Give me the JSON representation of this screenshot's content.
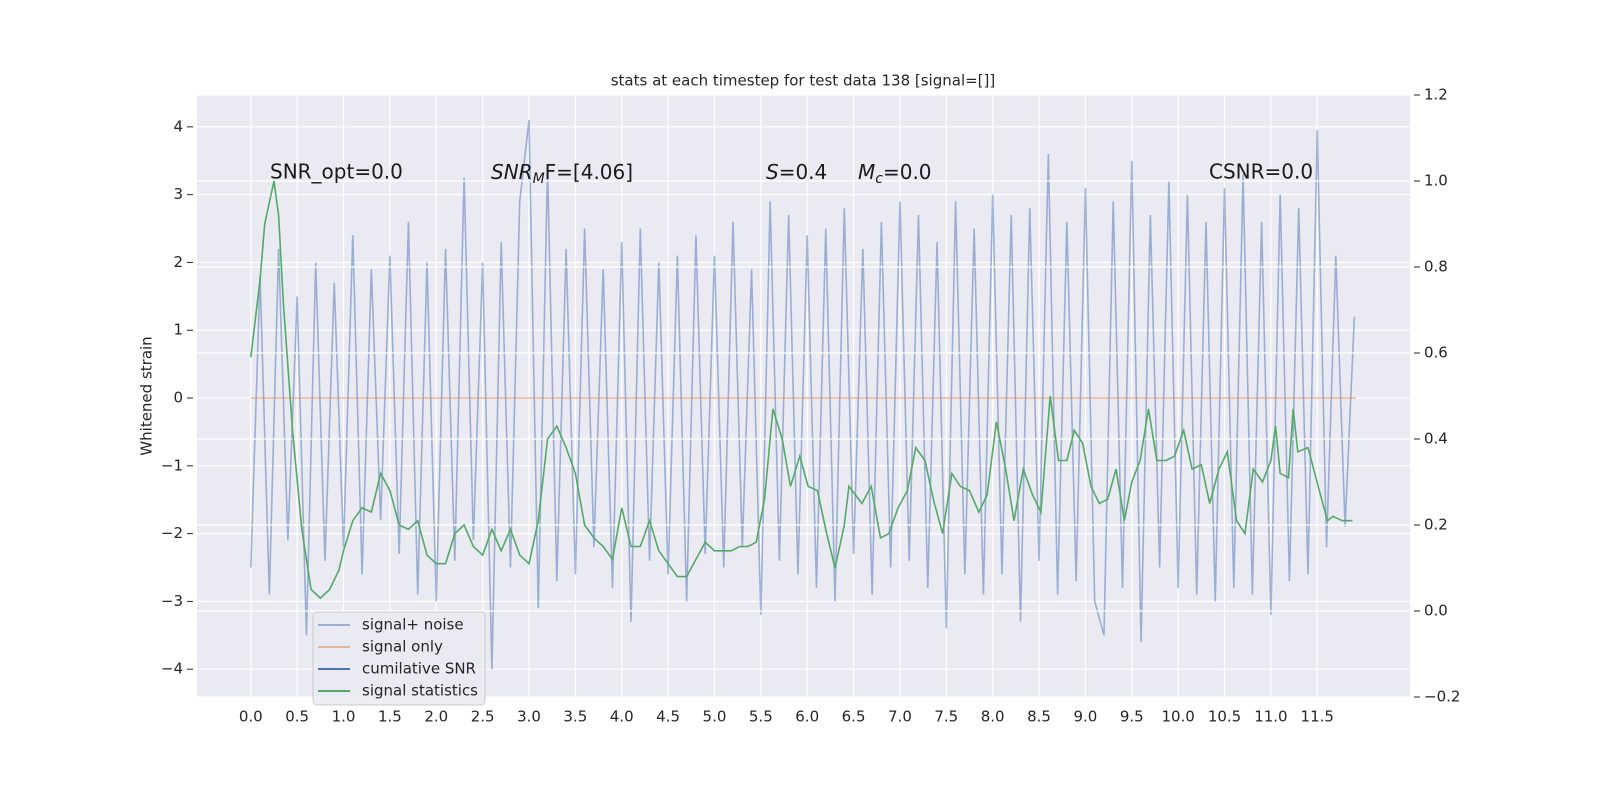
{
  "chart_data": {
    "type": "line",
    "title": "stats at each timestep for test data 138 [signal=[]]",
    "ylabel": "Whitened strain",
    "xlim": [
      -0.58,
      12.5
    ],
    "ylim": [
      -4.41,
      4.47
    ],
    "y2lim": [
      -0.2,
      1.2
    ],
    "xticks": [
      {
        "value": 0,
        "label": "0.0"
      },
      0.5,
      {
        "value": 1,
        "label": "1.0"
      },
      1.5,
      {
        "value": 2,
        "label": "2.0"
      },
      2.5,
      {
        "value": 3,
        "label": "3.0"
      },
      3.5,
      {
        "value": 4,
        "label": "4.0"
      },
      4.5,
      {
        "value": 5,
        "label": "5.0"
      },
      5.5,
      {
        "value": 6,
        "label": "6.0"
      },
      6.5,
      {
        "value": 7,
        "label": "7.0"
      },
      7.5,
      {
        "value": 8,
        "label": "8.0"
      },
      8.5,
      {
        "value": 9,
        "label": "9.0"
      },
      9.5,
      {
        "value": 10,
        "label": "10.0"
      },
      10.5,
      {
        "value": 11,
        "label": "11.0"
      },
      11.5
    ],
    "yticks": [
      {
        "value": -4,
        "label": "−4"
      },
      {
        "value": -3,
        "label": "−3"
      },
      {
        "value": -2,
        "label": "−2"
      },
      {
        "value": -1,
        "label": "−1"
      },
      0,
      1,
      2,
      3,
      4
    ],
    "y2ticks": [
      {
        "value": -0.2,
        "label": "−0.2"
      },
      {
        "value": 0,
        "label": "0.0"
      },
      0.2,
      0.4,
      0.6,
      0.8,
      {
        "value": 1,
        "label": "1.0"
      },
      1.2
    ],
    "grid": true,
    "legend": "lower left",
    "annotations": [
      {
        "text": "SNR_opt=0.0"
      },
      {
        "base": "SNR",
        "sub": "M",
        "rest": "F=[4.06]"
      },
      {
        "base": "S",
        "rest": "=0.4"
      },
      {
        "base": "M",
        "sub": "c",
        "rest": "=0.0"
      },
      {
        "text": "CSNR=0.0"
      }
    ],
    "series": [
      {
        "name": "signal+ noise",
        "color": "#4c72b0",
        "alpha": 0.5,
        "x": [
          0,
          0.1,
          0.2,
          0.3,
          0.4,
          0.5,
          0.6,
          0.7,
          0.8,
          0.9,
          1,
          1.1,
          1.2,
          1.3,
          1.4,
          1.5,
          1.6,
          1.7,
          1.8,
          1.9,
          2,
          2.1,
          2.2,
          2.3,
          2.4,
          2.5,
          2.6,
          2.7,
          2.8,
          2.9,
          3,
          3.1,
          3.2,
          3.3,
          3.4,
          3.5,
          3.6,
          3.7,
          3.8,
          3.9,
          4,
          4.1,
          4.2,
          4.3,
          4.4,
          4.5,
          4.6,
          4.7,
          4.8,
          4.9,
          5,
          5.1,
          5.2,
          5.3,
          5.4,
          5.5,
          5.6,
          5.7,
          5.8,
          5.9,
          6,
          6.1,
          6.2,
          6.3,
          6.4,
          6.5,
          6.6,
          6.7,
          6.8,
          6.9,
          7,
          7.1,
          7.2,
          7.3,
          7.4,
          7.5,
          7.6,
          7.7,
          7.8,
          7.9,
          8,
          8.1,
          8.2,
          8.3,
          8.4,
          8.5,
          8.6,
          8.7,
          8.8,
          8.9,
          9,
          9.1,
          9.2,
          9.3,
          9.4,
          9.5,
          9.6,
          9.7,
          9.8,
          9.9,
          10,
          10.1,
          10.2,
          10.3,
          10.4,
          10.5,
          10.6,
          10.7,
          10.8,
          10.9,
          11,
          11.1,
          11.2,
          11.3,
          11.4,
          11.5,
          11.6,
          11.7,
          11.8,
          11.9
        ],
        "values": [
          -2.5,
          1.8,
          -2.9,
          2.2,
          -2.1,
          1.5,
          -3.5,
          2.0,
          -2.4,
          1.7,
          -2.2,
          2.4,
          -2.6,
          1.9,
          -1.8,
          2.1,
          -2.3,
          2.6,
          -2.9,
          2.0,
          -3.0,
          2.2,
          -2.4,
          3.25,
          -2.1,
          2.0,
          -4.0,
          2.3,
          -2.5,
          2.9,
          4.1,
          -3.1,
          3.4,
          -2.7,
          2.2,
          -2.6,
          2.5,
          -2.2,
          1.9,
          -2.8,
          2.3,
          -3.3,
          2.5,
          -2.4,
          2.0,
          -2.6,
          2.1,
          -3.0,
          2.4,
          -2.3,
          2.1,
          -2.5,
          2.6,
          -2.2,
          1.9,
          -3.2,
          2.9,
          -2.4,
          2.7,
          -2.6,
          2.4,
          -2.8,
          2.5,
          -3.0,
          2.8,
          -2.3,
          2.2,
          -2.9,
          2.6,
          -2.5,
          2.9,
          -2.4,
          2.7,
          -2.8,
          2.3,
          -3.4,
          2.9,
          -2.6,
          2.5,
          -2.9,
          3.0,
          -2.6,
          2.7,
          -3.3,
          2.8,
          -2.4,
          3.6,
          -2.9,
          2.6,
          -2.7,
          3.1,
          -3.0,
          -3.5,
          2.9,
          -2.8,
          3.5,
          -3.6,
          2.7,
          -2.5,
          3.2,
          -2.8,
          3.0,
          -2.9,
          2.6,
          -3.0,
          3.1,
          -2.8,
          3.3,
          -2.9,
          2.6,
          -3.2,
          3.0,
          -2.7,
          2.8,
          -2.6,
          3.95,
          -2.2,
          2.1,
          -1.9,
          1.2
        ]
      },
      {
        "name": "signal only",
        "color": "#dd8452",
        "alpha": 0.5,
        "x": [
          0,
          11.92
        ],
        "values": [
          0,
          0
        ]
      },
      {
        "name": "cumilative SNR",
        "color": "#4c72b0",
        "axis": "y2",
        "x": [],
        "values": []
      },
      {
        "name": "signal statistics",
        "color": "#55a868",
        "axis": "y2",
        "x": [
          0,
          0.1,
          0.15,
          0.25,
          0.3,
          0.35,
          0.45,
          0.55,
          0.6,
          0.65,
          0.75,
          0.85,
          0.95,
          1,
          1.1,
          1.2,
          1.3,
          1.4,
          1.5,
          1.6,
          1.7,
          1.8,
          1.9,
          2,
          2.1,
          2.2,
          2.3,
          2.4,
          2.5,
          2.6,
          2.7,
          2.8,
          2.9,
          3,
          3.1,
          3.2,
          3.3,
          3.4,
          3.5,
          3.6,
          3.7,
          3.8,
          3.9,
          4,
          4.1,
          4.2,
          4.3,
          4.4,
          4.5,
          4.6,
          4.7,
          4.8,
          4.9,
          5,
          5.18,
          5.27,
          5.36,
          5.45,
          5.54,
          5.63,
          5.73,
          5.82,
          5.92,
          6.01,
          6.11,
          6.21,
          6.3,
          6.4,
          6.45,
          6.59,
          6.69,
          6.79,
          6.88,
          6.98,
          7.08,
          7.17,
          7.27,
          7.36,
          7.46,
          7.56,
          7.65,
          7.75,
          7.85,
          7.94,
          8.04,
          8.14,
          8.23,
          8.33,
          8.43,
          8.52,
          8.62,
          8.71,
          8.8,
          8.88,
          8.97,
          9.06,
          9.15,
          9.24,
          9.33,
          9.42,
          9.5,
          9.59,
          9.68,
          9.77,
          9.87,
          9.96,
          10.06,
          10.15,
          10.25,
          10.34,
          10.44,
          10.53,
          10.63,
          10.72,
          10.81,
          10.91,
          11.0,
          11.05,
          11.1,
          11.19,
          11.24,
          11.29,
          11.4,
          11.51,
          11.61,
          11.67,
          11.77,
          11.88
        ],
        "values": [
          0.59,
          0.77,
          0.9,
          1.0,
          0.92,
          0.72,
          0.42,
          0.19,
          0.12,
          0.05,
          0.03,
          0.05,
          0.095,
          0.14,
          0.21,
          0.24,
          0.23,
          0.32,
          0.28,
          0.2,
          0.19,
          0.21,
          0.13,
          0.11,
          0.11,
          0.18,
          0.2,
          0.15,
          0.13,
          0.19,
          0.14,
          0.19,
          0.13,
          0.11,
          0.21,
          0.4,
          0.43,
          0.38,
          0.32,
          0.2,
          0.17,
          0.15,
          0.12,
          0.24,
          0.15,
          0.15,
          0.21,
          0.14,
          0.11,
          0.08,
          0.08,
          0.12,
          0.16,
          0.14,
          0.14,
          0.15,
          0.15,
          0.16,
          0.26,
          0.47,
          0.4,
          0.29,
          0.36,
          0.29,
          0.28,
          0.18,
          0.1,
          0.2,
          0.29,
          0.25,
          0.29,
          0.17,
          0.18,
          0.24,
          0.28,
          0.38,
          0.35,
          0.26,
          0.18,
          0.32,
          0.29,
          0.28,
          0.23,
          0.27,
          0.44,
          0.33,
          0.21,
          0.33,
          0.27,
          0.23,
          0.5,
          0.35,
          0.35,
          0.42,
          0.39,
          0.29,
          0.25,
          0.26,
          0.33,
          0.21,
          0.3,
          0.35,
          0.47,
          0.35,
          0.35,
          0.36,
          0.42,
          0.33,
          0.34,
          0.25,
          0.33,
          0.37,
          0.21,
          0.18,
          0.33,
          0.3,
          0.35,
          0.43,
          0.32,
          0.31,
          0.47,
          0.37,
          0.38,
          0.29,
          0.21,
          0.22,
          0.21,
          0.21
        ]
      }
    ]
  }
}
